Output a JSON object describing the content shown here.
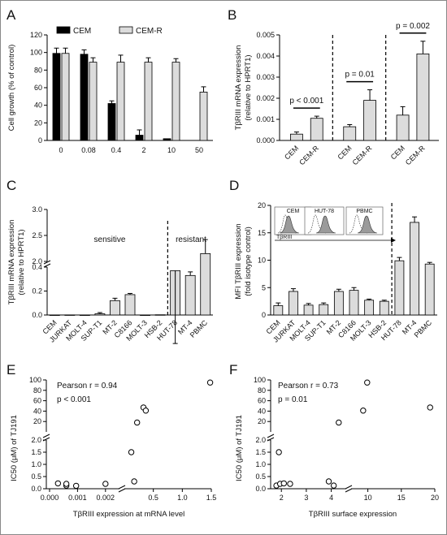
{
  "colors": {
    "black_bar": "#000000",
    "light_bar": "#dcdcdc",
    "axis": "#000000"
  },
  "chart_data": [
    {
      "panel": "A",
      "type": "bar",
      "categories": [
        "0",
        "0.08",
        "0.4",
        "2",
        "10",
        "50"
      ],
      "ylabel": "Cell growth (% of control)",
      "ylim": [
        0,
        120
      ],
      "yticks": [
        "0",
        "20",
        "40",
        "60",
        "80",
        "100",
        "120"
      ],
      "series": [
        {
          "name": "CEM",
          "color": "#000000",
          "values": [
            99,
            98,
            42,
            6,
            2,
            0
          ],
          "errors": [
            6,
            5,
            3,
            6,
            0,
            0
          ]
        },
        {
          "name": "CEM-R",
          "color": "#dcdcdc",
          "values": [
            99,
            89,
            89,
            89,
            89,
            55
          ],
          "errors": [
            6,
            5,
            8,
            5,
            4,
            6
          ]
        }
      ],
      "legend_position": "top"
    },
    {
      "panel": "B",
      "type": "bar",
      "categories": [
        "CEM",
        "CEM-R",
        "CEM",
        "CEM-R",
        "CEM",
        "CEM-R"
      ],
      "ylabel": "TβRIII mRNA expression",
      "ylabel2": "(relative to HPRT1)",
      "ylim": [
        0,
        0.005
      ],
      "yticks": [
        "0.000",
        "0.001",
        "0.002",
        "0.003",
        "0.004",
        "0.005"
      ],
      "values": [
        0.0003,
        0.00105,
        0.00065,
        0.0019,
        0.0012,
        0.0041
      ],
      "errors": [
        0.0001,
        0.0001,
        0.0001,
        0.0005,
        0.0004,
        0.0006
      ],
      "pvalues": [
        "p < 0.001",
        "p = 0.01",
        "p = 0.002"
      ]
    },
    {
      "panel": "C",
      "type": "bar",
      "categories": [
        "CEM",
        "JURKAT",
        "MOLT-4",
        "SUP-T1",
        "MT-2",
        "C8166",
        "MOLT-3",
        "HSB-2",
        "HUT-78",
        "MT-4",
        "PBMC"
      ],
      "ylabel": "TβRIII mRNA expression",
      "ylabel2": "(relative to HPRT1)",
      "yticks_upper": [
        "2.0",
        "2.5",
        "3.0"
      ],
      "yticks_lower": [
        "0.0",
        "0.2",
        "0.4"
      ],
      "values": [
        0.0003,
        0.0009,
        0.0003,
        0.01,
        0.12,
        0.17,
        0.0002,
        0.002,
        0.37,
        0.33,
        2.15
      ],
      "errors": [
        0,
        0,
        0,
        0.01,
        0.02,
        0.01,
        0,
        0,
        0.05,
        0.03,
        0.27
      ],
      "annotations": [
        "sensitive",
        "resistant"
      ]
    },
    {
      "panel": "D",
      "type": "bar",
      "categories": [
        "CEM",
        "JURKAT",
        "MOLT-4",
        "SUP-T1",
        "MT-2",
        "C8166",
        "MOLT-3",
        "HSB-2",
        "HUT-78",
        "MT-4",
        "PBMC"
      ],
      "ylabel": "MFI TβRIII expression",
      "ylabel2": "(fold isotype control)",
      "ylim": [
        0,
        20
      ],
      "yticks": [
        "0",
        "5",
        "10",
        "15",
        "20"
      ],
      "values": [
        1.7,
        4.3,
        1.8,
        1.9,
        4.3,
        4.5,
        2.7,
        2.5,
        9.9,
        16.9,
        9.3
      ],
      "errors": [
        0.5,
        0.5,
        0.3,
        0.3,
        0.4,
        0.5,
        0.2,
        0.2,
        0.6,
        1.0,
        0.3
      ],
      "inset_labels": [
        "CEM",
        "HUT-78",
        "PBMC"
      ],
      "inset_axis_label": "TβRIII"
    },
    {
      "panel": "E",
      "type": "scatter",
      "xlabel": "TβRIII expression at mRNA level",
      "ylabel": "IC50 (μM) of TJ191",
      "xticks": [
        "0.000",
        "0.001",
        "0.002",
        "0.5",
        "1.0",
        "1.5"
      ],
      "yticks": [
        "0.0",
        "0.5",
        "1.0",
        "1.5",
        "2.0",
        "20",
        "40",
        "60",
        "80",
        "100"
      ],
      "points": [
        {
          "x": 0.0003,
          "y": 0.22
        },
        {
          "x": 0.0006,
          "y": 0.13
        },
        {
          "x": 0.0006,
          "y": 0.2
        },
        {
          "x": 0.00095,
          "y": 0.12
        },
        {
          "x": 0.002,
          "y": 0.2
        },
        {
          "x": 0.12,
          "y": 1.5
        },
        {
          "x": 0.17,
          "y": 0.3
        },
        {
          "x": 0.22,
          "y": 18
        },
        {
          "x": 0.33,
          "y": 47
        },
        {
          "x": 0.37,
          "y": 41
        },
        {
          "x": 1.48,
          "y": 95
        }
      ],
      "annotations": [
        "Pearson r = 0.94",
        "p < 0.001"
      ]
    },
    {
      "panel": "F",
      "type": "scatter",
      "xlabel": "TβRIII surface expression",
      "ylabel": "IC50 (μM) of TJ191",
      "xticks": [
        "2",
        "3",
        "4",
        "10",
        "15",
        "20"
      ],
      "yticks": [
        "0.0",
        "0.5",
        "1.0",
        "1.5",
        "2.0",
        "20",
        "40",
        "60",
        "80",
        "100"
      ],
      "points": [
        {
          "x": 1.8,
          "y": 0.13
        },
        {
          "x": 1.9,
          "y": 1.5
        },
        {
          "x": 1.95,
          "y": 0.2
        },
        {
          "x": 2.1,
          "y": 0.22
        },
        {
          "x": 2.35,
          "y": 0.2
        },
        {
          "x": 3.9,
          "y": 0.3
        },
        {
          "x": 4.1,
          "y": 0.13
        },
        {
          "x": 9.9,
          "y": 95
        },
        {
          "x": 9.3,
          "y": 41
        },
        {
          "x": 4.3,
          "y": 18
        },
        {
          "x": 19.3,
          "y": 47
        }
      ],
      "annotations": [
        "Pearson r = 0.73",
        "p = 0.01"
      ]
    }
  ]
}
